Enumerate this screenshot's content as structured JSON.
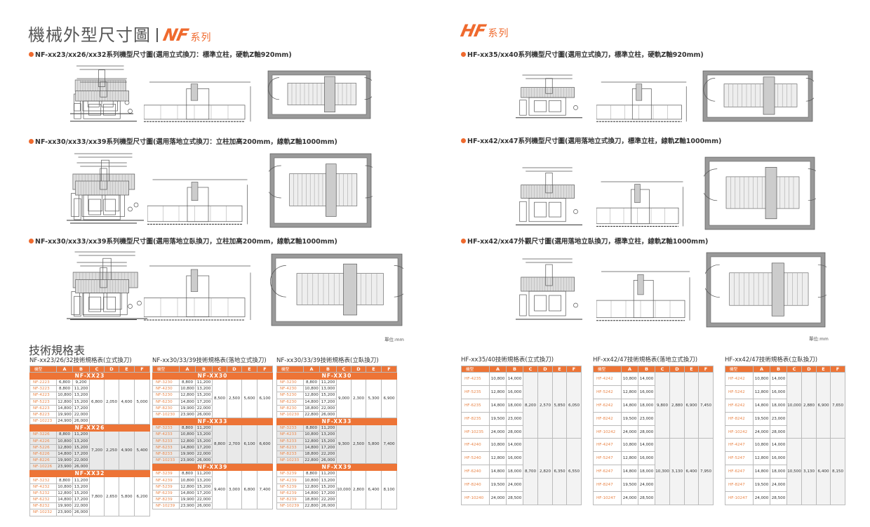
{
  "nf": {
    "title_main": "機械外型尺寸圖",
    "logo": "NF",
    "series": "系列",
    "drawings": [
      {
        "caption": "NF-xx23/xx26/xx32系列機型尺寸圖(選用立式換刀：標準立柱，硬軌Z軸920mm)"
      },
      {
        "caption": "NF-xx30/xx33/xx39系列機型尺寸圖(選用落地立式換刀：立柱加高200mm，線軌Z軸1000mm)"
      },
      {
        "caption": "NF-xx30/xx33/xx39系列機型尺寸圖(選用落地立臥換刀，立柱加高200mm，線軌Z軸1000mm)"
      }
    ],
    "unit": "單位:mm"
  },
  "hf": {
    "logo": "HF",
    "series": "系列",
    "drawings": [
      {
        "caption": "HF-xx35/xx40系列機型尺寸圖(選用立式換刀，標準立柱，硬軌Z軸920mm)"
      },
      {
        "caption": "HF-xx42/xx47系列機型尺寸圖(選用落地立式換刀，標準立柱，線軌Z軸1000mm)"
      },
      {
        "caption": "HF-xx42/xx47外觀尺寸圖(選用落地立臥換刀，標準立柱，線軌Z軸1000mm)"
      }
    ],
    "unit": "單位:mm"
  },
  "specs": {
    "title": "技術規格表",
    "header": [
      "機型",
      "A",
      "B",
      "C",
      "D",
      "E",
      "F"
    ],
    "nf_tables": [
      {
        "title": "NF-xx23/26/32技術規格表(立式換刀)",
        "groups": [
          {
            "name": "NF-XX23",
            "C": "6,800",
            "D": "2,050",
            "E": "4,600",
            "F": "5,000",
            "rows": [
              [
                "NF-2223",
                "6,800",
                "9,200"
              ],
              [
                "NF-3223",
                "8,800",
                "11,200"
              ],
              [
                "NF-4223",
                "10,800",
                "13,200"
              ],
              [
                "NF-5223",
                "12,800",
                "15,200"
              ],
              [
                "NF-6223",
                "14,800",
                "17,200"
              ],
              [
                "NF-8223",
                "19,900",
                "22,000"
              ],
              [
                "NF-10223",
                "24,900",
                "26,000"
              ]
            ]
          },
          {
            "name": "NF-XX26",
            "C": "7,200",
            "D": "2,250",
            "E": "4,900",
            "F": "5,400",
            "rows": [
              [
                "NF-3226",
                "8,800",
                "11,200"
              ],
              [
                "NF-4226",
                "10,800",
                "13,200"
              ],
              [
                "NF-5226",
                "12,800",
                "15,200"
              ],
              [
                "NF-6226",
                "14,800",
                "17,200"
              ],
              [
                "NF-8226",
                "19,900",
                "22,000"
              ],
              [
                "NF-10226",
                "23,900",
                "26,000"
              ]
            ]
          },
          {
            "name": "NF-XX32",
            "C": "7,800",
            "D": "2,650",
            "E": "5,800",
            "F": "6,200",
            "rows": [
              [
                "NF-3232",
                "8,800",
                "11,200"
              ],
              [
                "NF-4232",
                "10,800",
                "13,200"
              ],
              [
                "NF-5232",
                "12,800",
                "15,200"
              ],
              [
                "NF-6232",
                "14,800",
                "17,200"
              ],
              [
                "NF-8232",
                "19,900",
                "22,000"
              ],
              [
                "NF-10232",
                "23,900",
                "26,000"
              ]
            ]
          }
        ]
      },
      {
        "title": "NF-xx30/33/39技術規格表(落地立式換刀)",
        "groups": [
          {
            "name": "NF-XX30",
            "C": "8,500",
            "D": "2,500",
            "E": "5,600",
            "F": "6,100",
            "rows": [
              [
                "NF-3230",
                "8,800",
                "11,200"
              ],
              [
                "NF-4230",
                "10,800",
                "13,200"
              ],
              [
                "NF-5230",
                "12,800",
                "15,200"
              ],
              [
                "NF-6230",
                "14,800",
                "17,200"
              ],
              [
                "NF-8230",
                "19,900",
                "22,000"
              ],
              [
                "NF-10230",
                "23,900",
                "26,000"
              ]
            ]
          },
          {
            "name": "NF-XX33",
            "C": "8,800",
            "D": "2,700",
            "E": "6,100",
            "F": "6,600",
            "rows": [
              [
                "NF-3233",
                "8,800",
                "11,200"
              ],
              [
                "NF-4233",
                "10,800",
                "13,200"
              ],
              [
                "NF-5233",
                "12,800",
                "15,200"
              ],
              [
                "NF-6233",
                "14,800",
                "17,200"
              ],
              [
                "NF-8233",
                "19,900",
                "22,000"
              ],
              [
                "NF-10233",
                "23,900",
                "26,000"
              ]
            ]
          },
          {
            "name": "NF-XX39",
            "C": "9,400",
            "D": "3,000",
            "E": "6,800",
            "F": "7,400",
            "rows": [
              [
                "NF-3239",
                "8,800",
                "11,200"
              ],
              [
                "NF-4239",
                "10,800",
                "13,200"
              ],
              [
                "NF-5239",
                "12,800",
                "15,200"
              ],
              [
                "NF-6239",
                "14,800",
                "17,200"
              ],
              [
                "NF-8239",
                "19,900",
                "22,000"
              ],
              [
                "NF-10239",
                "23,900",
                "26,000"
              ]
            ]
          }
        ]
      },
      {
        "title": "NF-xx30/33/39技術規格表(立臥換刀)",
        "groups": [
          {
            "name": "NF-XX30",
            "C": "9,000",
            "D": "2,300",
            "E": "5,300",
            "F": "6,900",
            "rows": [
              [
                "NF-3230",
                "8,800",
                "11,200"
              ],
              [
                "NF-4230",
                "10,800",
                "13,000"
              ],
              [
                "NF-5230",
                "12,800",
                "15,200"
              ],
              [
                "NF-6230",
                "14,800",
                "17,200"
              ],
              [
                "NF-8230",
                "18,800",
                "22,000"
              ],
              [
                "NF-10230",
                "22,800",
                "26,000"
              ]
            ]
          },
          {
            "name": "NF-XX33",
            "C": "9,300",
            "D": "2,500",
            "E": "5,800",
            "F": "7,400",
            "rows": [
              [
                "NF-3233",
                "8,800",
                "11,200"
              ],
              [
                "NF-4233",
                "10,800",
                "13,200"
              ],
              [
                "NF-5233",
                "12,800",
                "15,200"
              ],
              [
                "NF-6233",
                "14,800",
                "17,200"
              ],
              [
                "NF-8233",
                "18,800",
                "22,200"
              ],
              [
                "NF-10233",
                "22,800",
                "26,000"
              ]
            ]
          },
          {
            "name": "NF-XX39",
            "C": "10,000",
            "D": "2,800",
            "E": "6,400",
            "F": "8,100",
            "rows": [
              [
                "NF-3239",
                "8,800",
                "11,200"
              ],
              [
                "NF-4239",
                "10,800",
                "13,200"
              ],
              [
                "NF-5239",
                "12,800",
                "15,200"
              ],
              [
                "NF-6239",
                "14,800",
                "17,200"
              ],
              [
                "NF-8239",
                "18,800",
                "22,200"
              ],
              [
                "NF-10239",
                "22,800",
                "26,000"
              ]
            ]
          }
        ]
      }
    ],
    "hf_tables": [
      {
        "title": "HF-xx35/40技術規格表(立式換刀)",
        "groups": [
          {
            "C": "8,200",
            "D": "2,570",
            "E": "5,850",
            "F": "6,050",
            "rows": [
              [
                "HF-4235",
                "10,800",
                "14,000"
              ],
              [
                "HF-5235",
                "12,800",
                "16,000"
              ],
              [
                "HF-6235",
                "14,800",
                "18,000"
              ],
              [
                "HF-8235",
                "19,500",
                "23,000"
              ],
              [
                "HF-10235",
                "24,000",
                "28,000"
              ]
            ]
          },
          {
            "C": "8,700",
            "D": "2,820",
            "E": "6,350",
            "F": "6,550",
            "rows": [
              [
                "HF-4240",
                "10,800",
                "14,000"
              ],
              [
                "HF-5240",
                "12,800",
                "16,000"
              ],
              [
                "HF-6240",
                "14,800",
                "18,000"
              ],
              [
                "HF-8240",
                "19,500",
                "24,000"
              ],
              [
                "HF-10240",
                "24,000",
                "28,500"
              ]
            ]
          }
        ]
      },
      {
        "title": "HF-xx42/47技術規格表(落地立式換刀)",
        "groups": [
          {
            "C": "9,800",
            "D": "2,880",
            "E": "6,900",
            "F": "7,450",
            "rows": [
              [
                "HF-4242",
                "10,800",
                "14,000"
              ],
              [
                "HF-5242",
                "12,800",
                "16,000"
              ],
              [
                "HF-6242",
                "14,800",
                "18,000"
              ],
              [
                "HF-8242",
                "19,500",
                "23,000"
              ],
              [
                "HF-10242",
                "24,000",
                "28,000"
              ]
            ]
          },
          {
            "C": "10,300",
            "D": "3,130",
            "E": "6,400",
            "F": "7,950",
            "rows": [
              [
                "HF-4247",
                "10,800",
                "14,000"
              ],
              [
                "HF-5247",
                "12,800",
                "16,000"
              ],
              [
                "HF-6247",
                "14,800",
                "18,000"
              ],
              [
                "HF-8247",
                "19,500",
                "24,000"
              ],
              [
                "HF-10247",
                "24,000",
                "28,500"
              ]
            ]
          }
        ]
      },
      {
        "title": "HF-xx42/47技術規格表(立臥換刀)",
        "groups": [
          {
            "C": "10,000",
            "D": "2,880",
            "E": "6,900",
            "F": "7,650",
            "rows": [
              [
                "HF-4242",
                "10,800",
                "14,000"
              ],
              [
                "HF-5242",
                "12,800",
                "16,000"
              ],
              [
                "HF-6242",
                "14,800",
                "18,000"
              ],
              [
                "HF-8242",
                "19,500",
                "23,000"
              ],
              [
                "HF-10242",
                "24,000",
                "28,000"
              ]
            ]
          },
          {
            "C": "10,500",
            "D": "3,130",
            "E": "6,400",
            "F": "8,150",
            "rows": [
              [
                "HF-4247",
                "10,800",
                "14,000"
              ],
              [
                "HF-5247",
                "12,800",
                "16,000"
              ],
              [
                "HF-6247",
                "14,800",
                "18,000"
              ],
              [
                "HF-8247",
                "19,500",
                "24,000"
              ],
              [
                "HF-10247",
                "24,000",
                "28,500"
              ]
            ]
          }
        ]
      }
    ],
    "colors": {
      "accent": "#ed7436",
      "model_text": "#e9864a"
    }
  }
}
